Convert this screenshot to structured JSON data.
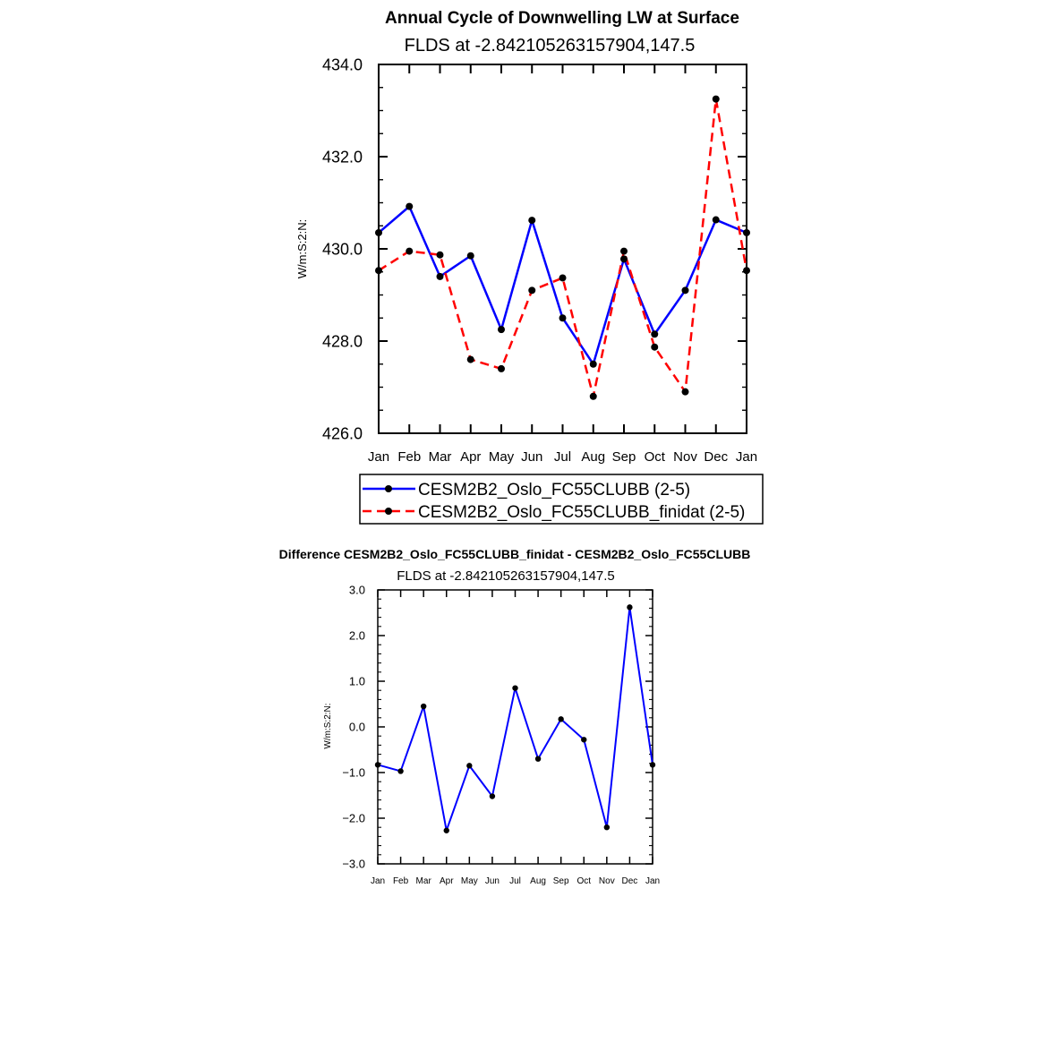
{
  "chart_data": [
    {
      "type": "line",
      "title": "Annual Cycle of Downwelling LW at Surface",
      "subtitle": "FLDS at -2.842105263157904,147.5",
      "xlabel": "",
      "ylabel": "W/m:S:2:N:",
      "ylim": [
        426.0,
        434.0
      ],
      "yticks": [
        "426.0",
        "428.0",
        "430.0",
        "432.0",
        "434.0"
      ],
      "categories": [
        "Jan",
        "Feb",
        "Mar",
        "Apr",
        "May",
        "Jun",
        "Jul",
        "Aug",
        "Sep",
        "Oct",
        "Nov",
        "Dec",
        "Jan"
      ],
      "legend_position": "below",
      "series": [
        {
          "name": "CESM2B2_Oslo_FC55CLUBB (2-5)",
          "color": "#0000ff",
          "dash": "solid",
          "values": [
            430.35,
            430.92,
            429.4,
            429.85,
            428.25,
            430.62,
            428.5,
            427.5,
            429.78,
            428.15,
            429.1,
            430.63,
            430.35
          ]
        },
        {
          "name": "CESM2B2_Oslo_FC55CLUBB_finidat (2-5)",
          "color": "#ff0000",
          "dash": "dashed",
          "values": [
            429.53,
            429.95,
            429.87,
            427.6,
            427.4,
            429.1,
            429.37,
            426.8,
            429.95,
            427.87,
            426.9,
            433.25,
            429.53
          ]
        }
      ]
    },
    {
      "type": "line",
      "title": "Difference CESM2B2_Oslo_FC55CLUBB_finidat - CESM2B2_Oslo_FC55CLUBB",
      "subtitle": "FLDS at -2.842105263157904,147.5",
      "xlabel": "",
      "ylabel": "W/m:S:2:N:",
      "ylim": [
        -3.0,
        3.0
      ],
      "yticks": [
        "-3.0",
        "-2.0",
        "-1.0",
        "0.0",
        "1.0",
        "2.0",
        "3.0"
      ],
      "categories": [
        "Jan",
        "Feb",
        "Mar",
        "Apr",
        "May",
        "Jun",
        "Jul",
        "Aug",
        "Sep",
        "Oct",
        "Nov",
        "Dec",
        "Jan"
      ],
      "series": [
        {
          "name": "difference",
          "color": "#0000ff",
          "dash": "solid",
          "values": [
            -0.83,
            -0.97,
            0.45,
            -2.27,
            -0.85,
            -1.52,
            0.85,
            -0.7,
            0.17,
            -0.28,
            -2.2,
            2.62,
            -0.83
          ]
        }
      ]
    }
  ]
}
